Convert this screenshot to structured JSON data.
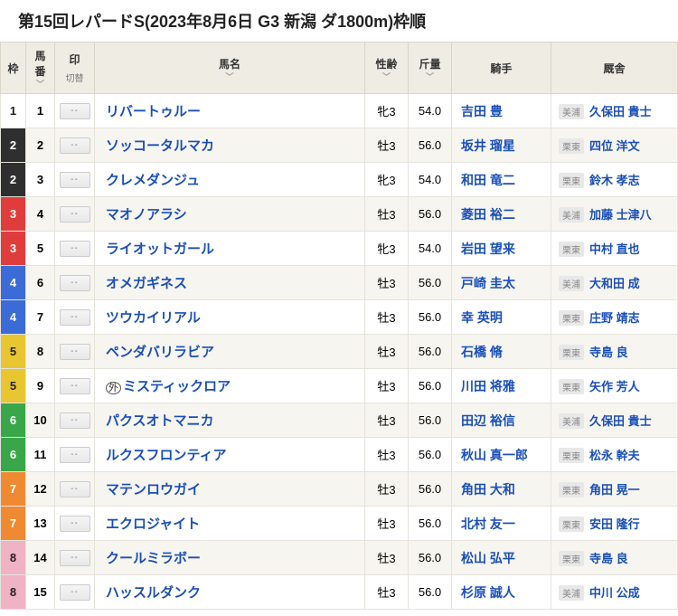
{
  "title": "第15回レパードS(2023年8月6日 G3 新潟 ダ1800m)枠順",
  "mark_label": "--",
  "columns": {
    "waku": "枠",
    "umaban": "馬番",
    "mark": "印",
    "mark_sub": "切替",
    "name": "馬名",
    "seirei": "性齢",
    "kinryo": "斤量",
    "jockey": "騎手",
    "trainer": "厩舎"
  },
  "waku_colors": {
    "1": {
      "bg": "#ffffff",
      "fg": "#222222"
    },
    "2": {
      "bg": "#2f2f2f",
      "fg": "#ffffff"
    },
    "3": {
      "bg": "#e03c3c",
      "fg": "#ffffff"
    },
    "4": {
      "bg": "#3a6bd6",
      "fg": "#ffffff"
    },
    "5": {
      "bg": "#e8c632",
      "fg": "#222222"
    },
    "6": {
      "bg": "#3aa64a",
      "fg": "#ffffff"
    },
    "7": {
      "bg": "#ef8a32",
      "fg": "#ffffff"
    },
    "8": {
      "bg": "#f0b2c5",
      "fg": "#222222"
    }
  },
  "rows": [
    {
      "waku": "1",
      "umaban": "1",
      "name": "リバートゥルー",
      "seirei": "牝3",
      "kinryo": "54.0",
      "jockey": "吉田 豊",
      "region": "美浦",
      "trainer": "久保田 貴士"
    },
    {
      "waku": "2",
      "umaban": "2",
      "name": "ソッコータルマカ",
      "seirei": "牡3",
      "kinryo": "56.0",
      "jockey": "坂井 瑠星",
      "region": "栗東",
      "trainer": "四位 洋文"
    },
    {
      "waku": "2",
      "umaban": "3",
      "name": "クレメダンジュ",
      "seirei": "牝3",
      "kinryo": "54.0",
      "jockey": "和田 竜二",
      "region": "栗東",
      "trainer": "鈴木 孝志"
    },
    {
      "waku": "3",
      "umaban": "4",
      "name": "マオノアラシ",
      "seirei": "牡3",
      "kinryo": "56.0",
      "jockey": "菱田 裕二",
      "region": "美浦",
      "trainer": "加藤 士津八"
    },
    {
      "waku": "3",
      "umaban": "5",
      "name": "ライオットガール",
      "seirei": "牝3",
      "kinryo": "54.0",
      "jockey": "岩田 望来",
      "region": "栗東",
      "trainer": "中村 直也"
    },
    {
      "waku": "4",
      "umaban": "6",
      "name": "オメガギネス",
      "seirei": "牡3",
      "kinryo": "56.0",
      "jockey": "戸崎 圭太",
      "region": "美浦",
      "trainer": "大和田 成"
    },
    {
      "waku": "4",
      "umaban": "7",
      "name": "ツウカイリアル",
      "seirei": "牡3",
      "kinryo": "56.0",
      "jockey": "幸 英明",
      "region": "栗東",
      "trainer": "庄野 靖志"
    },
    {
      "waku": "5",
      "umaban": "8",
      "name": "ペンダバリラビア",
      "seirei": "牡3",
      "kinryo": "56.0",
      "jockey": "石橋 脩",
      "region": "栗東",
      "trainer": "寺島 良"
    },
    {
      "waku": "5",
      "umaban": "9",
      "name": "ミスティックロア",
      "gaikoku": "外",
      "seirei": "牡3",
      "kinryo": "56.0",
      "jockey": "川田 将雅",
      "region": "栗東",
      "trainer": "矢作 芳人"
    },
    {
      "waku": "6",
      "umaban": "10",
      "name": "パクスオトマニカ",
      "seirei": "牡3",
      "kinryo": "56.0",
      "jockey": "田辺 裕信",
      "region": "美浦",
      "trainer": "久保田 貴士"
    },
    {
      "waku": "6",
      "umaban": "11",
      "name": "ルクスフロンティア",
      "seirei": "牡3",
      "kinryo": "56.0",
      "jockey": "秋山 真一郎",
      "region": "栗東",
      "trainer": "松永 幹夫"
    },
    {
      "waku": "7",
      "umaban": "12",
      "name": "マテンロウガイ",
      "seirei": "牡3",
      "kinryo": "56.0",
      "jockey": "角田 大和",
      "region": "栗東",
      "trainer": "角田 晃一"
    },
    {
      "waku": "7",
      "umaban": "13",
      "name": "エクロジャイト",
      "seirei": "牡3",
      "kinryo": "56.0",
      "jockey": "北村 友一",
      "region": "栗東",
      "trainer": "安田 隆行"
    },
    {
      "waku": "8",
      "umaban": "14",
      "name": "クールミラボー",
      "seirei": "牡3",
      "kinryo": "56.0",
      "jockey": "松山 弘平",
      "region": "栗東",
      "trainer": "寺島 良"
    },
    {
      "waku": "8",
      "umaban": "15",
      "name": "ハッスルダンク",
      "seirei": "牡3",
      "kinryo": "56.0",
      "jockey": "杉原 誠人",
      "region": "美浦",
      "trainer": "中川 公成"
    }
  ]
}
